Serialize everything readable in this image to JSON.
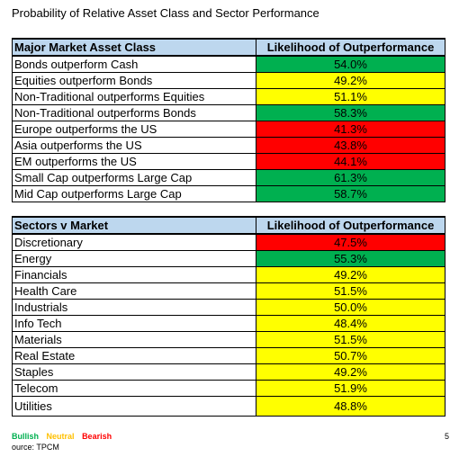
{
  "title": "Probability of Relative Asset Class and Sector Performance",
  "asset_table": {
    "header_label": "Major Market Asset Class",
    "header_value": "Likelihood of Outperformance",
    "rows": [
      {
        "label": "Bonds outperform Cash",
        "value": "54.0%",
        "color": "#00b050"
      },
      {
        "label": "Equities outperform Bonds",
        "value": "49.2%",
        "color": "#ffff00"
      },
      {
        "label": "Non-Traditional outperforms Equities",
        "value": "51.1%",
        "color": "#ffff00"
      },
      {
        "label": "Non-Traditional outperforms Bonds",
        "value": "58.3%",
        "color": "#00b050"
      },
      {
        "label": "Europe outperforms the US",
        "value": "41.3%",
        "color": "#ff0000"
      },
      {
        "label": "Asia outperforms the US",
        "value": "43.8%",
        "color": "#ff0000"
      },
      {
        "label": "EM outperforms the US",
        "value": "44.1%",
        "color": "#ff0000"
      },
      {
        "label": "Small Cap outperforms Large Cap",
        "value": "61.3%",
        "color": "#00b050"
      },
      {
        "label": "Mid Cap outperforms Large Cap",
        "value": "58.7%",
        "color": "#00b050"
      }
    ]
  },
  "sector_table": {
    "header_label": "Sectors v Market",
    "header_value": "Likelihood of Outperformance",
    "rows": [
      {
        "label": "Discretionary",
        "value": "47.5%",
        "color": "#ff0000"
      },
      {
        "label": "Energy",
        "value": "55.3%",
        "color": "#00b050"
      },
      {
        "label": "Financials",
        "value": "49.2%",
        "color": "#ffff00"
      },
      {
        "label": "Health Care",
        "value": "51.5%",
        "color": "#ffff00"
      },
      {
        "label": "Industrials",
        "value": "50.0%",
        "color": "#ffff00"
      },
      {
        "label": "Info Tech",
        "value": "48.4%",
        "color": "#ffff00"
      },
      {
        "label": "Materials",
        "value": "51.5%",
        "color": "#ffff00"
      },
      {
        "label": "Real Estate",
        "value": "50.7%",
        "color": "#ffff00"
      },
      {
        "label": "Staples",
        "value": "49.2%",
        "color": "#ffff00"
      },
      {
        "label": "Telecom",
        "value": "51.9%",
        "color": "#ffff00"
      },
      {
        "label": "Utilities",
        "value": "48.8%",
        "color": "#ffff00"
      }
    ]
  },
  "legend": {
    "bullish": "Bullish",
    "neutral": "Neutral",
    "bearish": "Bearish",
    "bullish_color": "#00b050",
    "neutral_color": "#ffc000",
    "bearish_color": "#ff0000"
  },
  "source": "ource: TPCM",
  "page_number": "5"
}
